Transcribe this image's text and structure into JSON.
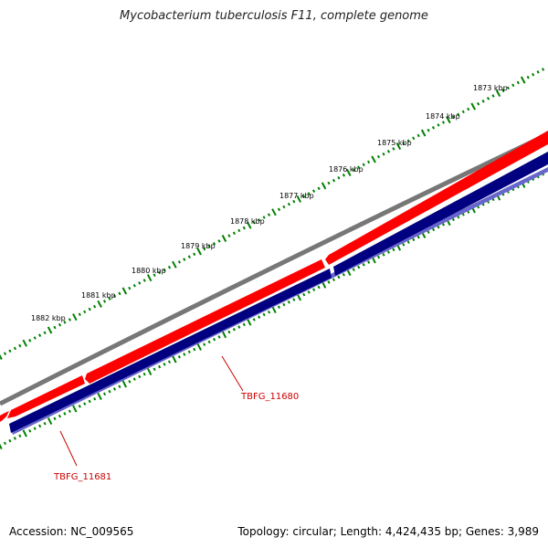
{
  "title": "Mycobacterium tuberculosis F11, complete genome",
  "colors": {
    "backbone": "#777777",
    "forward_gene": "#ff0000",
    "reverse_gene": "#000080",
    "reverse_gene_shadow": "#6666cc",
    "ticks": "#008000",
    "gene_label": "#cc0000"
  },
  "scale_labels": [
    "1873 kbp",
    "1874 kbp",
    "1875 kbp",
    "1876 kbp",
    "1877 kbp",
    "1878 kbp",
    "1879 kbp",
    "1880 kbp",
    "1881 kbp",
    "1882 kbp"
  ],
  "gene_labels": [
    "TBFG_11680",
    "TBFG_11681"
  ],
  "footer": {
    "accession": "Accession: NC_009565",
    "topology": "Topology: circular; Length: 4,424,435 bp; Genes: 3,989"
  }
}
